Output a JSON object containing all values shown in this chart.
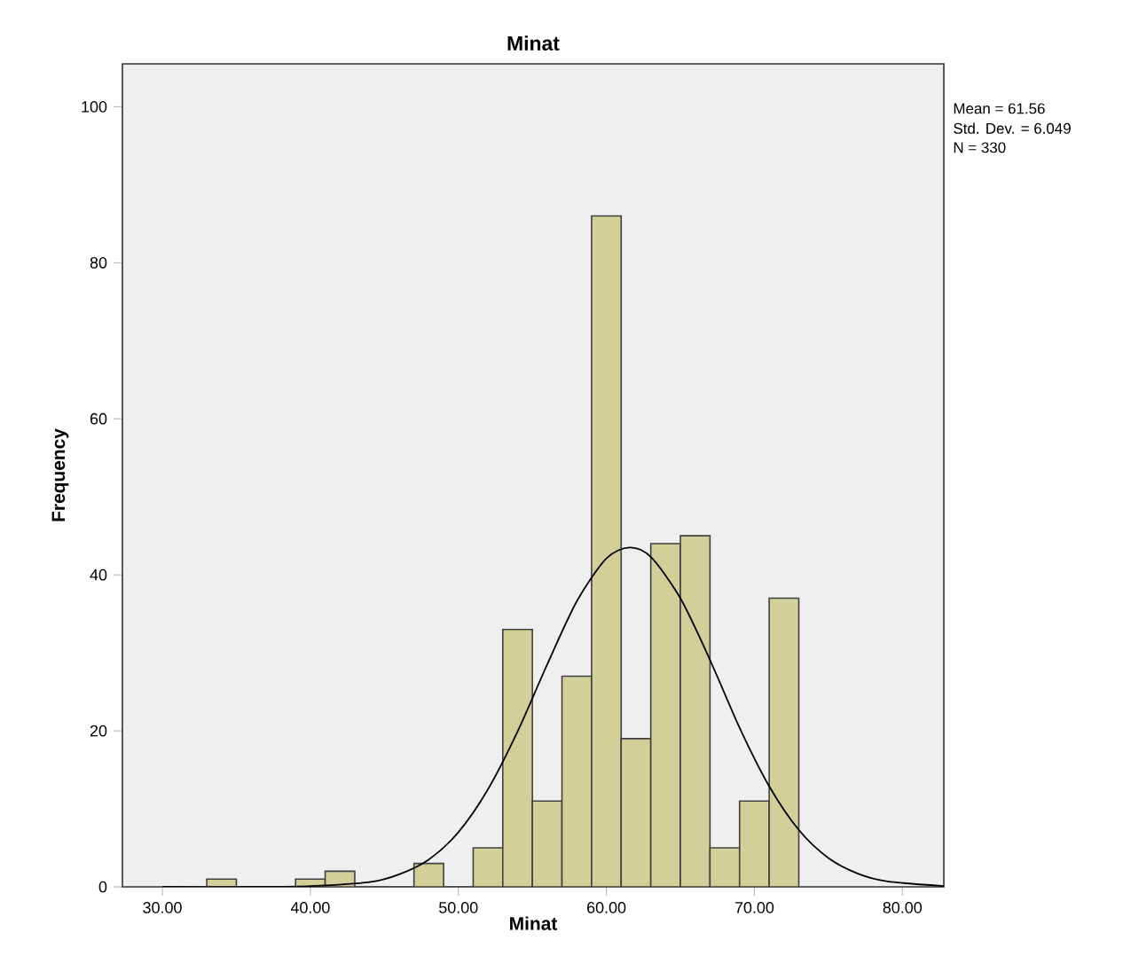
{
  "chart_data": {
    "type": "histogram",
    "title": "Minat",
    "xlabel": "Minat",
    "ylabel": "Frequency",
    "annotations": [
      "Mean = 61.56",
      "Std. Dev. = 6.049",
      "N = 330"
    ],
    "series": [
      {
        "color": "#d3cf98",
        "bins": [
          33,
          35,
          37,
          39,
          41,
          43,
          45,
          47,
          49,
          51,
          53,
          55,
          57,
          59,
          61,
          63,
          65,
          67,
          69,
          71,
          73
        ],
        "values": [
          1,
          0,
          0,
          1,
          2,
          0,
          0,
          3,
          0,
          5,
          33,
          11,
          27,
          86,
          19,
          44,
          45,
          5,
          11,
          37
        ]
      },
      {
        "type": "line",
        "color": "#000000",
        "x": [
          30,
          36,
          40,
          44,
          46,
          48,
          50,
          52,
          54,
          56,
          58,
          60,
          61.56,
          63,
          65,
          67,
          69,
          71,
          73,
          75,
          77,
          79,
          82.8
        ],
        "values": [
          0,
          0,
          0.1,
          0.6,
          1.6,
          3.5,
          7.0,
          12.5,
          19.9,
          28.5,
          36.6,
          42.1,
          43.5,
          42.3,
          37.0,
          29.1,
          20.4,
          12.9,
          7.3,
          3.7,
          1.7,
          0.7,
          0.1
        ]
      }
    ],
    "xlim": [
      27.3,
      82.8
    ],
    "ylim": [
      0,
      105.5
    ],
    "xticks": [
      {
        "value": 30,
        "label": "30.00"
      },
      {
        "value": 40,
        "label": "40.00"
      },
      {
        "value": 50,
        "label": "50.00"
      },
      {
        "value": 60,
        "label": "60.00"
      },
      {
        "value": 70,
        "label": "70.00"
      },
      {
        "value": 80,
        "label": "80.00"
      }
    ],
    "yticks": [
      0,
      20,
      40,
      60,
      80,
      100
    ],
    "grid": false
  }
}
